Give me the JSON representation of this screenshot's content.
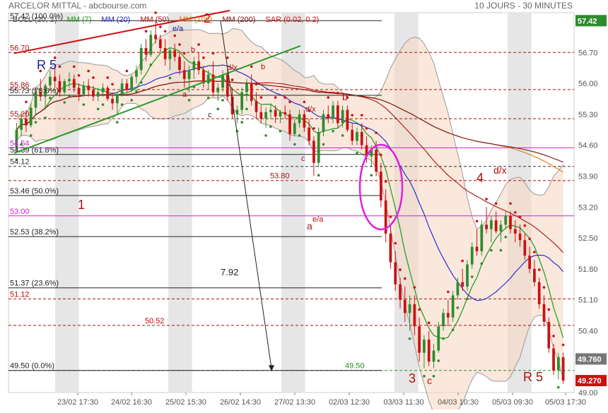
{
  "header": {
    "title": "ARCELOR MITTAL - abcbourse.com",
    "period": "10 JOURS - 30 MINUTES",
    "indicators": [
      {
        "label": "BOLL (20, 2)",
        "color": "#555555"
      },
      {
        "label": "MM (7)",
        "color": "#1a9a1a"
      },
      {
        "label": "MM (20)",
        "color": "#1f1fd0"
      },
      {
        "label": "MM (50)",
        "color": "#b01010"
      },
      {
        "label": "MM (100)",
        "color": "#e07a10"
      },
      {
        "label": "MM (200)",
        "color": "#7a1010"
      },
      {
        "label": "SAR (0.02, 0.2)",
        "color": "#d01010"
      }
    ]
  },
  "chart_data": {
    "type": "candlestick",
    "ylim": [
      49.0,
      57.6
    ],
    "y_ticks": [
      "57.42",
      "56.70",
      "56.00",
      "55.30",
      "54.60",
      "53.90",
      "53.20",
      "52.50",
      "51.80",
      "51.10",
      "50.40",
      "49.760",
      "49.270",
      "49.00"
    ],
    "x_ticks": [
      "23/02 17:30",
      "24/02 16:30",
      "25/02 15:30",
      "26/02 14:30",
      "27/02 13:30",
      "02/03 12:30",
      "03/03 11:30",
      "04/03 10:30",
      "05/03 09:30",
      "05/03 17:30"
    ],
    "price_badges": [
      {
        "value": "57.42",
        "color": "#2e8b2e"
      },
      {
        "value": "49.760",
        "color": "#777777"
      },
      {
        "value": "49.270",
        "color": "#cc1111"
      }
    ],
    "fib_levels": [
      {
        "label": "57.42  (100.0%)",
        "value": 57.42
      },
      {
        "label": "55.73  (78.6%)",
        "value": 55.73
      },
      {
        "label": "54.39  (61.8%)",
        "value": 54.39
      },
      {
        "label": "53.46  (50.0%)",
        "value": 53.46
      },
      {
        "label": "52.53  (38.2%)",
        "value": 52.53
      },
      {
        "label": "51.37  (23.6%)",
        "value": 51.37
      },
      {
        "label": "49.50  (0.0%)",
        "value": 49.5
      }
    ],
    "level_lines": [
      {
        "label": "56.70",
        "value": 56.7,
        "color": "#b01010"
      },
      {
        "label": "55.86",
        "value": 55.86,
        "color": "#b01010"
      },
      {
        "label": "55.20",
        "value": 55.2,
        "color": "#b01010"
      },
      {
        "label": "54.54",
        "value": 54.54,
        "color": "#d020d0"
      },
      {
        "label": "54.12",
        "value": 54.12,
        "color": "#333333"
      },
      {
        "label": "53.80",
        "value": 53.8,
        "color": "#b01010"
      },
      {
        "label": "53.00",
        "value": 53.0,
        "color": "#d020d0"
      },
      {
        "label": "51.12",
        "value": 51.12,
        "color": "#b01010"
      },
      {
        "label": "50.52",
        "value": 50.52,
        "color": "#b01010"
      },
      {
        "label": "49.50",
        "value": 49.5,
        "color": "#2e8b2e"
      }
    ],
    "annotations": [
      "R 5",
      "R 5",
      "1",
      "2",
      "3",
      "4",
      "7.92",
      "a",
      "b",
      "c",
      "d/x",
      "e/a",
      "b",
      "c",
      "d/x",
      "e/a",
      "a",
      "b",
      "c",
      "d/x"
    ],
    "candles": [
      [
        54.55,
        55.1,
        54.45,
        54.95
      ],
      [
        54.95,
        55.3,
        54.8,
        55.2
      ],
      [
        55.2,
        55.4,
        54.9,
        55.05
      ],
      [
        55.05,
        55.55,
        55.0,
        55.45
      ],
      [
        55.45,
        55.9,
        55.3,
        55.8
      ],
      [
        55.8,
        56.1,
        55.6,
        55.7
      ],
      [
        55.7,
        56.0,
        55.4,
        55.95
      ],
      [
        55.95,
        56.3,
        55.85,
        56.15
      ],
      [
        56.15,
        56.4,
        55.9,
        56.05
      ],
      [
        56.05,
        56.2,
        55.7,
        55.8
      ],
      [
        55.8,
        56.1,
        55.75,
        56.05
      ],
      [
        56.05,
        56.25,
        55.9,
        56.1
      ],
      [
        56.1,
        56.2,
        55.8,
        55.9
      ],
      [
        55.9,
        56.0,
        55.6,
        55.75
      ],
      [
        55.75,
        56.05,
        55.7,
        55.95
      ],
      [
        55.95,
        56.1,
        55.7,
        55.85
      ],
      [
        55.85,
        55.95,
        55.6,
        55.7
      ],
      [
        55.7,
        55.9,
        55.6,
        55.8
      ],
      [
        55.8,
        56.0,
        55.7,
        55.9
      ],
      [
        55.9,
        55.95,
        55.6,
        55.65
      ],
      [
        55.65,
        55.8,
        55.4,
        55.55
      ],
      [
        55.55,
        55.8,
        55.3,
        55.75
      ],
      [
        55.75,
        56.1,
        55.7,
        56.0
      ],
      [
        56.0,
        56.1,
        55.8,
        55.85
      ],
      [
        55.85,
        56.2,
        55.8,
        56.15
      ],
      [
        56.15,
        56.4,
        56.0,
        56.3
      ],
      [
        56.3,
        56.9,
        56.2,
        56.8
      ],
      [
        56.8,
        57.0,
        56.5,
        56.65
      ],
      [
        56.65,
        57.2,
        56.6,
        57.1
      ],
      [
        57.1,
        57.42,
        56.9,
        57.0
      ],
      [
        57.0,
        57.1,
        56.7,
        56.8
      ],
      [
        56.8,
        57.0,
        56.4,
        56.55
      ],
      [
        56.55,
        56.8,
        56.3,
        56.75
      ],
      [
        56.75,
        56.9,
        56.5,
        56.6
      ],
      [
        56.6,
        56.7,
        56.2,
        56.3
      ],
      [
        56.3,
        56.5,
        55.9,
        56.1
      ],
      [
        56.1,
        56.4,
        55.8,
        56.3
      ],
      [
        56.3,
        56.6,
        56.1,
        56.5
      ],
      [
        56.5,
        56.7,
        56.2,
        56.3
      ],
      [
        56.3,
        56.4,
        55.9,
        56.0
      ],
      [
        56.0,
        56.3,
        55.85,
        56.2
      ],
      [
        56.2,
        56.5,
        55.7,
        55.8
      ],
      [
        55.8,
        56.0,
        55.6,
        55.9
      ],
      [
        55.9,
        56.3,
        55.8,
        56.2
      ],
      [
        56.2,
        56.4,
        55.6,
        55.7
      ],
      [
        55.7,
        55.9,
        55.2,
        55.3
      ],
      [
        55.3,
        55.5,
        55.1,
        55.4
      ],
      [
        55.4,
        55.9,
        55.3,
        55.8
      ],
      [
        55.8,
        56.1,
        55.6,
        56.0
      ],
      [
        56.0,
        56.2,
        55.5,
        55.6
      ],
      [
        55.6,
        55.8,
        55.2,
        55.35
      ],
      [
        55.35,
        55.5,
        55.1,
        55.2
      ],
      [
        55.2,
        55.45,
        55.0,
        55.35
      ],
      [
        55.35,
        55.55,
        55.2,
        55.4
      ],
      [
        55.4,
        55.5,
        55.1,
        55.25
      ],
      [
        55.25,
        55.4,
        55.1,
        55.35
      ],
      [
        55.35,
        55.5,
        55.2,
        55.3
      ],
      [
        55.3,
        55.4,
        54.7,
        54.85
      ],
      [
        54.85,
        55.2,
        54.8,
        55.1
      ],
      [
        55.1,
        55.4,
        55.0,
        55.3
      ],
      [
        55.3,
        55.4,
        54.9,
        55.0
      ],
      [
        55.0,
        55.2,
        54.6,
        54.7
      ],
      [
        54.7,
        54.8,
        53.9,
        54.2
      ],
      [
        54.2,
        55.0,
        54.1,
        54.9
      ],
      [
        54.9,
        55.4,
        54.8,
        55.3
      ],
      [
        55.3,
        55.5,
        55.1,
        55.2
      ],
      [
        55.2,
        55.6,
        55.1,
        55.5
      ],
      [
        55.5,
        55.6,
        55.0,
        55.1
      ],
      [
        55.1,
        55.5,
        55.0,
        55.4
      ],
      [
        55.4,
        55.5,
        54.9,
        54.95
      ],
      [
        54.95,
        55.1,
        54.6,
        54.7
      ],
      [
        54.7,
        55.0,
        54.6,
        54.9
      ],
      [
        54.9,
        55.1,
        54.5,
        54.6
      ],
      [
        54.6,
        54.8,
        54.2,
        54.35
      ],
      [
        54.35,
        54.6,
        54.1,
        54.5
      ],
      [
        54.5,
        54.7,
        53.9,
        54.0
      ],
      [
        54.0,
        54.2,
        53.2,
        53.35
      ],
      [
        53.35,
        53.6,
        52.4,
        52.6
      ],
      [
        52.6,
        52.8,
        51.8,
        51.95
      ],
      [
        51.95,
        52.2,
        51.3,
        51.45
      ],
      [
        51.45,
        51.6,
        50.9,
        51.1
      ],
      [
        51.1,
        51.4,
        50.6,
        50.8
      ],
      [
        50.8,
        51.2,
        50.4,
        51.0
      ],
      [
        51.0,
        51.2,
        50.3,
        50.5
      ],
      [
        50.5,
        50.7,
        49.7,
        49.9
      ],
      [
        49.9,
        50.3,
        49.55,
        50.2
      ],
      [
        50.2,
        50.4,
        49.6,
        49.7
      ],
      [
        49.7,
        50.1,
        49.55,
        49.95
      ],
      [
        49.95,
        50.6,
        49.9,
        50.5
      ],
      [
        50.5,
        50.9,
        50.4,
        50.8
      ],
      [
        50.8,
        51.1,
        50.5,
        50.7
      ],
      [
        50.7,
        51.3,
        50.6,
        51.2
      ],
      [
        51.2,
        51.6,
        51.1,
        51.5
      ],
      [
        51.5,
        51.8,
        51.3,
        51.4
      ],
      [
        51.4,
        52.0,
        51.3,
        51.9
      ],
      [
        51.9,
        52.4,
        51.8,
        52.3
      ],
      [
        52.3,
        52.7,
        52.1,
        52.2
      ],
      [
        52.2,
        52.9,
        52.1,
        52.8
      ],
      [
        52.8,
        53.2,
        52.6,
        52.7
      ],
      [
        52.7,
        53.0,
        52.4,
        52.9
      ],
      [
        52.9,
        53.1,
        52.6,
        52.65
      ],
      [
        52.65,
        52.9,
        52.4,
        52.8
      ],
      [
        52.8,
        53.1,
        52.7,
        53.0
      ],
      [
        53.0,
        53.1,
        52.6,
        52.7
      ],
      [
        52.7,
        52.9,
        52.4,
        52.6
      ],
      [
        52.6,
        52.8,
        52.3,
        52.45
      ],
      [
        52.45,
        52.6,
        52.0,
        52.1
      ],
      [
        52.1,
        52.3,
        51.7,
        51.8
      ],
      [
        51.8,
        52.0,
        51.4,
        51.5
      ],
      [
        51.5,
        51.6,
        50.9,
        51.0
      ],
      [
        51.0,
        51.2,
        50.5,
        50.6
      ],
      [
        50.6,
        50.7,
        49.9,
        50.0
      ],
      [
        50.0,
        50.1,
        49.4,
        49.5
      ],
      [
        49.5,
        49.9,
        49.3,
        49.8
      ],
      [
        49.8,
        49.9,
        49.2,
        49.27
      ]
    ]
  }
}
